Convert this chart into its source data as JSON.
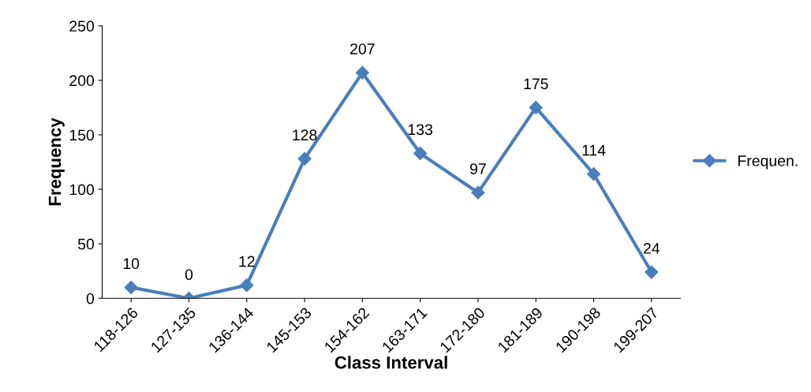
{
  "chart_data": {
    "type": "line",
    "xlabel": "Class Interval",
    "ylabel": "Frequency",
    "categories": [
      "118-126",
      "127-135",
      "136-144",
      "145-153",
      "154-162",
      "163-171",
      "172-180",
      "181-189",
      "190-198",
      "199-207"
    ],
    "series": [
      {
        "name": "Frequen.",
        "color": "#4a7ebb",
        "values": [
          10,
          0,
          12,
          128,
          207,
          133,
          97,
          175,
          114,
          24
        ]
      }
    ],
    "ylim": [
      0,
      250
    ],
    "yticks": [
      0,
      50,
      100,
      150,
      200,
      250
    ],
    "data_labels": true,
    "marker": "diamond",
    "line_style": "solid",
    "grid": false,
    "legend": "right"
  }
}
